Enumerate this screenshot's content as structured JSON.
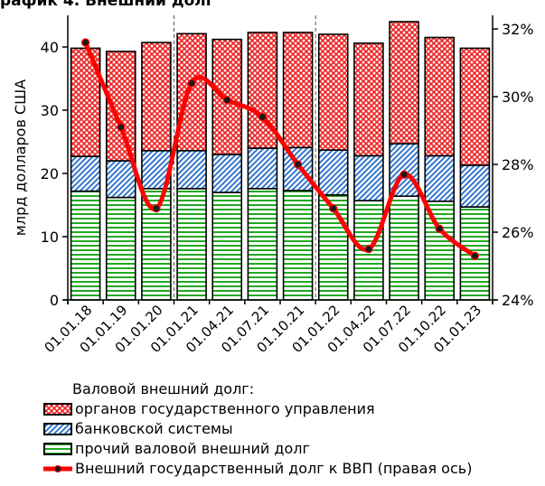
{
  "top_title": "рафик 4. Внешний долг",
  "chart_data": {
    "type": "bar",
    "stacked": true,
    "categories": [
      "01.01.18",
      "01.01.19",
      "01.01.20",
      "01.01.21",
      "01.04.21",
      "01.07.21",
      "01.10.21",
      "01.01.22",
      "01.04.22",
      "01.07.22",
      "01.10.22",
      "01.01.23"
    ],
    "ylabel": "млрд долларов США",
    "ylim": [
      0,
      45
    ],
    "y_ticks": [
      "0",
      "10",
      "20",
      "30",
      "40"
    ],
    "y2lim": [
      24,
      32.4
    ],
    "y2_ticks": [
      "24%",
      "26%",
      "28%",
      "30%",
      "32%"
    ],
    "grid": false,
    "legend_position": "bottom",
    "legend_heading": "Валовой внешний долг:",
    "series": [
      {
        "name": "прочий валовой внешний долг",
        "axis": "left",
        "pattern": "horizontal-lines",
        "color": "#22aa22",
        "values": [
          17.2,
          16.2,
          17.6,
          17.6,
          17.0,
          17.6,
          17.3,
          16.6,
          15.7,
          16.4,
          15.6,
          14.7
        ]
      },
      {
        "name": "банковской системы",
        "axis": "left",
        "pattern": "diagonal-lines",
        "color": "#3377cc",
        "values": [
          5.5,
          5.8,
          6.0,
          6.0,
          6.0,
          6.4,
          6.8,
          7.1,
          7.1,
          8.3,
          7.2,
          6.6
        ]
      },
      {
        "name": "органов государственного управления",
        "axis": "left",
        "pattern": "cross-hatch",
        "color": "#ee2222",
        "values": [
          17.1,
          17.3,
          17.1,
          18.5,
          18.2,
          18.3,
          18.2,
          18.3,
          17.8,
          19.3,
          18.7,
          18.5
        ]
      },
      {
        "name": "Внешний государственный долг к ВВП (правая ось)",
        "axis": "right",
        "type": "line",
        "color": "#ff0000",
        "values": [
          31.6,
          29.1,
          26.7,
          30.4,
          29.9,
          29.4,
          28.0,
          26.7,
          25.5,
          27.7,
          26.1,
          25.3
        ]
      }
    ]
  }
}
